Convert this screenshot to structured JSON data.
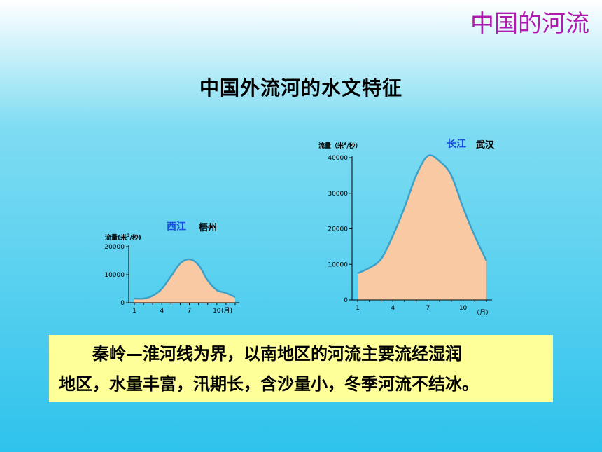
{
  "header": {
    "corner_title": "中国的河流"
  },
  "main": {
    "heading": "中国外流河的水文特征",
    "text_line1": "秦岭—淮河线为界，以南地区的河流主要流经湿润",
    "text_line2": "地区，水量丰富，汛期长，含沙量小，冬季河流不结冰。"
  },
  "colors": {
    "fill": "#f9c9a3",
    "line": "#3da0c8",
    "corner_title": "#b01ab0",
    "text_box": "#ffff99"
  },
  "chart_data": [
    {
      "type": "area",
      "river": "西江",
      "station": "梧州",
      "ylabel_prefix": "流量(米",
      "ylabel_sup": "3",
      "ylabel_suffix": "/秒)",
      "xlabel": "(月)",
      "x": [
        1,
        2,
        3,
        4,
        5,
        6,
        7,
        8,
        9,
        10,
        11,
        12
      ],
      "values": [
        1500,
        1500,
        2500,
        5000,
        9500,
        14000,
        15500,
        13500,
        8000,
        4500,
        3500,
        2000
      ],
      "ylim": [
        0,
        20000
      ],
      "yticks": [
        "0",
        "10000",
        "20000"
      ],
      "xticks": [
        "1",
        "4",
        "7",
        "10"
      ]
    },
    {
      "type": "area",
      "river": "长江",
      "station": "武汉",
      "ylabel_prefix": "流量（米",
      "ylabel_sup": "3",
      "ylabel_suffix": "/秒）",
      "xlabel": "（月）",
      "x": [
        1,
        2,
        3,
        4,
        5,
        6,
        7,
        8,
        9,
        10,
        11,
        12
      ],
      "values": [
        7500,
        9000,
        11500,
        18000,
        26000,
        35000,
        40500,
        39000,
        35000,
        26000,
        18000,
        11000
      ],
      "ylim": [
        0,
        40000
      ],
      "yticks": [
        "0",
        "10000",
        "20000",
        "30000",
        "40000"
      ],
      "xticks": [
        "1",
        "4",
        "7",
        "10"
      ]
    }
  ]
}
